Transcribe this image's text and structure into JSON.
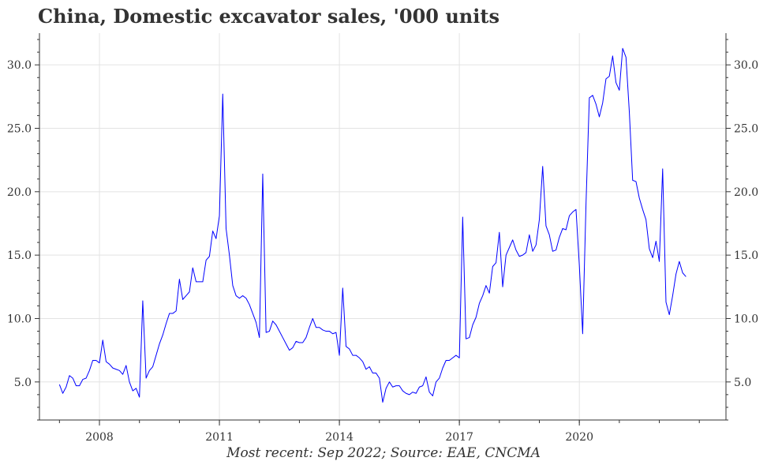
{
  "chart_data": {
    "type": "line",
    "title": "China, Domestic excavator sales, '000 units",
    "source": "Most recent: Sep 2022; Source: EAE, CNCMA",
    "xlabel": "",
    "ylabel": "",
    "x_range": [
      "2006-07",
      "2023-09"
    ],
    "ylim": [
      2.0,
      32.5
    ],
    "y_ticks": [
      5.0,
      10.0,
      15.0,
      20.0,
      25.0,
      30.0
    ],
    "y_tick_labels": [
      "5.0",
      "10.0",
      "15.0",
      "20.0",
      "25.0",
      "30.0"
    ],
    "x_ticks": [
      "2008-01",
      "2011-01",
      "2014-01",
      "2017-01",
      "2020-01"
    ],
    "x_tick_labels": [
      "2008",
      "2011",
      "2014",
      "2017",
      "2020"
    ],
    "grid": true,
    "dual_y_axis": true,
    "series": [
      {
        "color": "#0000ff",
        "points": [
          [
            "2007-01",
            4.8
          ],
          [
            "2007-02",
            4.1
          ],
          [
            "2007-03",
            4.6
          ],
          [
            "2007-04",
            5.5
          ],
          [
            "2007-05",
            5.3
          ],
          [
            "2007-06",
            4.7
          ],
          [
            "2007-07",
            4.7
          ],
          [
            "2007-08",
            5.2
          ],
          [
            "2007-09",
            5.3
          ],
          [
            "2007-10",
            5.9
          ],
          [
            "2007-11",
            6.7
          ],
          [
            "2007-12",
            6.7
          ],
          [
            "2008-01",
            6.5
          ],
          [
            "2008-02",
            8.3
          ],
          [
            "2008-03",
            6.6
          ],
          [
            "2008-04",
            6.4
          ],
          [
            "2008-05",
            6.1
          ],
          [
            "2008-06",
            6.0
          ],
          [
            "2008-07",
            5.9
          ],
          [
            "2008-08",
            5.6
          ],
          [
            "2008-09",
            6.3
          ],
          [
            "2008-10",
            5.0
          ],
          [
            "2008-11",
            4.3
          ],
          [
            "2008-12",
            4.5
          ],
          [
            "2009-01",
            3.8
          ],
          [
            "2009-02",
            11.4
          ],
          [
            "2009-03",
            5.3
          ],
          [
            "2009-04",
            5.9
          ],
          [
            "2009-05",
            6.2
          ],
          [
            "2009-06",
            7.1
          ],
          [
            "2009-07",
            8.0
          ],
          [
            "2009-08",
            8.7
          ],
          [
            "2009-09",
            9.6
          ],
          [
            "2009-10",
            10.4
          ],
          [
            "2009-11",
            10.4
          ],
          [
            "2009-12",
            10.6
          ],
          [
            "2010-01",
            13.1
          ],
          [
            "2010-02",
            11.5
          ],
          [
            "2010-03",
            11.8
          ],
          [
            "2010-04",
            12.1
          ],
          [
            "2010-05",
            14.0
          ],
          [
            "2010-06",
            12.9
          ],
          [
            "2010-07",
            12.9
          ],
          [
            "2010-08",
            12.9
          ],
          [
            "2010-09",
            14.6
          ],
          [
            "2010-10",
            14.9
          ],
          [
            "2010-11",
            16.9
          ],
          [
            "2010-12",
            16.3
          ],
          [
            "2011-01",
            18.1
          ],
          [
            "2011-02",
            27.7
          ],
          [
            "2011-03",
            17.1
          ],
          [
            "2011-04",
            15.0
          ],
          [
            "2011-05",
            12.6
          ],
          [
            "2011-06",
            11.8
          ],
          [
            "2011-07",
            11.6
          ],
          [
            "2011-08",
            11.8
          ],
          [
            "2011-09",
            11.6
          ],
          [
            "2011-10",
            11.1
          ],
          [
            "2011-11",
            10.4
          ],
          [
            "2011-12",
            9.7
          ],
          [
            "2012-01",
            8.5
          ],
          [
            "2012-02",
            21.4
          ],
          [
            "2012-03",
            8.9
          ],
          [
            "2012-04",
            9.0
          ],
          [
            "2012-05",
            9.8
          ],
          [
            "2012-06",
            9.5
          ],
          [
            "2012-07",
            9.0
          ],
          [
            "2012-08",
            8.5
          ],
          [
            "2012-09",
            8.0
          ],
          [
            "2012-10",
            7.5
          ],
          [
            "2012-11",
            7.7
          ],
          [
            "2012-12",
            8.2
          ],
          [
            "2013-01",
            8.1
          ],
          [
            "2013-02",
            8.1
          ],
          [
            "2013-03",
            8.5
          ],
          [
            "2013-04",
            9.3
          ],
          [
            "2013-05",
            10.0
          ],
          [
            "2013-06",
            9.3
          ],
          [
            "2013-07",
            9.3
          ],
          [
            "2013-08",
            9.1
          ],
          [
            "2013-09",
            9.0
          ],
          [
            "2013-10",
            9.0
          ],
          [
            "2013-11",
            8.8
          ],
          [
            "2013-12",
            8.9
          ],
          [
            "2014-01",
            7.1
          ],
          [
            "2014-02",
            12.4
          ],
          [
            "2014-03",
            7.8
          ],
          [
            "2014-04",
            7.6
          ],
          [
            "2014-05",
            7.1
          ],
          [
            "2014-06",
            7.1
          ],
          [
            "2014-07",
            6.9
          ],
          [
            "2014-08",
            6.6
          ],
          [
            "2014-09",
            6.0
          ],
          [
            "2014-10",
            6.2
          ],
          [
            "2014-11",
            5.7
          ],
          [
            "2014-12",
            5.7
          ],
          [
            "2015-01",
            5.3
          ],
          [
            "2015-02",
            3.4
          ],
          [
            "2015-03",
            4.5
          ],
          [
            "2015-04",
            5.0
          ],
          [
            "2015-05",
            4.6
          ],
          [
            "2015-06",
            4.7
          ],
          [
            "2015-07",
            4.7
          ],
          [
            "2015-08",
            4.3
          ],
          [
            "2015-09",
            4.1
          ],
          [
            "2015-10",
            4.0
          ],
          [
            "2015-11",
            4.2
          ],
          [
            "2015-12",
            4.1
          ],
          [
            "2016-01",
            4.6
          ],
          [
            "2016-02",
            4.7
          ],
          [
            "2016-03",
            5.4
          ],
          [
            "2016-04",
            4.2
          ],
          [
            "2016-05",
            3.9
          ],
          [
            "2016-06",
            5.0
          ],
          [
            "2016-07",
            5.3
          ],
          [
            "2016-08",
            6.1
          ],
          [
            "2016-09",
            6.7
          ],
          [
            "2016-10",
            6.7
          ],
          [
            "2016-11",
            6.9
          ],
          [
            "2016-12",
            7.1
          ],
          [
            "2017-01",
            6.9
          ],
          [
            "2017-02",
            18.0
          ],
          [
            "2017-03",
            8.4
          ],
          [
            "2017-04",
            8.5
          ],
          [
            "2017-05",
            9.5
          ],
          [
            "2017-06",
            10.1
          ],
          [
            "2017-07",
            11.2
          ],
          [
            "2017-08",
            11.8
          ],
          [
            "2017-09",
            12.6
          ],
          [
            "2017-10",
            12.0
          ],
          [
            "2017-11",
            14.1
          ],
          [
            "2017-12",
            14.4
          ],
          [
            "2018-01",
            16.8
          ],
          [
            "2018-02",
            12.5
          ],
          [
            "2018-03",
            15.0
          ],
          [
            "2018-04",
            15.6
          ],
          [
            "2018-05",
            16.2
          ],
          [
            "2018-06",
            15.4
          ],
          [
            "2018-07",
            14.9
          ],
          [
            "2018-08",
            15.0
          ],
          [
            "2018-09",
            15.2
          ],
          [
            "2018-10",
            16.6
          ],
          [
            "2018-11",
            15.3
          ],
          [
            "2018-12",
            15.8
          ],
          [
            "2019-01",
            17.8
          ],
          [
            "2019-02",
            22.0
          ],
          [
            "2019-03",
            17.3
          ],
          [
            "2019-04",
            16.6
          ],
          [
            "2019-05",
            15.3
          ],
          [
            "2019-06",
            15.4
          ],
          [
            "2019-07",
            16.4
          ],
          [
            "2019-08",
            17.1
          ],
          [
            "2019-09",
            17.0
          ],
          [
            "2019-10",
            18.1
          ],
          [
            "2019-11",
            18.4
          ],
          [
            "2019-12",
            18.6
          ],
          [
            "2020-01",
            14.2
          ],
          [
            "2020-02",
            8.8
          ],
          [
            "2020-03",
            19.0
          ],
          [
            "2020-04",
            27.4
          ],
          [
            "2020-05",
            27.6
          ],
          [
            "2020-06",
            26.9
          ],
          [
            "2020-07",
            25.9
          ],
          [
            "2020-08",
            27.0
          ],
          [
            "2020-09",
            28.9
          ],
          [
            "2020-10",
            29.1
          ],
          [
            "2020-11",
            30.7
          ],
          [
            "2020-12",
            28.6
          ],
          [
            "2021-01",
            28.0
          ],
          [
            "2021-02",
            31.3
          ],
          [
            "2021-03",
            30.6
          ],
          [
            "2021-04",
            26.3
          ],
          [
            "2021-05",
            20.9
          ],
          [
            "2021-06",
            20.8
          ],
          [
            "2021-07",
            19.5
          ],
          [
            "2021-08",
            18.6
          ],
          [
            "2021-09",
            17.8
          ],
          [
            "2021-10",
            15.5
          ],
          [
            "2021-11",
            14.8
          ],
          [
            "2021-12",
            16.1
          ],
          [
            "2022-01",
            14.5
          ],
          [
            "2022-02",
            21.8
          ],
          [
            "2022-03",
            11.3
          ],
          [
            "2022-04",
            10.3
          ],
          [
            "2022-05",
            11.8
          ],
          [
            "2022-06",
            13.5
          ],
          [
            "2022-07",
            14.5
          ],
          [
            "2022-08",
            13.6
          ],
          [
            "2022-09",
            13.3
          ]
        ]
      }
    ]
  }
}
